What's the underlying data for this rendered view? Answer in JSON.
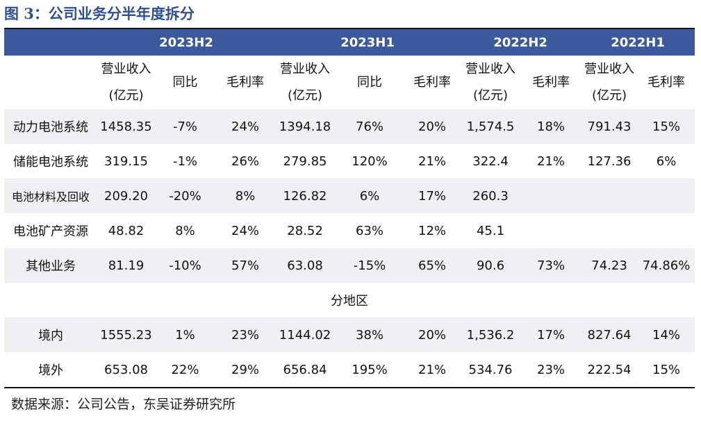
{
  "title": "图 3：公司业务分半年度拆分",
  "periods": [
    "2023H2",
    "2023H1",
    "2022H2",
    "2022H1"
  ],
  "col_headers": {
    "revenue_line1": "营业收入",
    "revenue_line2": "(亿元)",
    "yoy": "同比",
    "margin": "毛利率"
  },
  "rows": [
    {
      "label": "动力电池系统",
      "cells": [
        "1458.35",
        "-7%",
        "24%",
        "1394.18",
        "76%",
        "20%",
        "1,574.5",
        "18%",
        "791.43",
        "15%"
      ]
    },
    {
      "label": "储能电池系统",
      "cells": [
        "319.15",
        "-1%",
        "26%",
        "279.85",
        "120%",
        "21%",
        "322.4",
        "21%",
        "127.36",
        "6%"
      ]
    },
    {
      "label": "电池材料及回收",
      "cells": [
        "209.20",
        "-20%",
        "8%",
        "126.82",
        "6%",
        "17%",
        "260.3",
        "",
        "",
        ""
      ]
    },
    {
      "label": "电池矿产资源",
      "cells": [
        "48.82",
        "8%",
        "24%",
        "28.52",
        "63%",
        "12%",
        "45.1",
        "",
        "",
        ""
      ]
    },
    {
      "label": "其他业务",
      "cells": [
        "81.19",
        "-10%",
        "57%",
        "63.08",
        "-15%",
        "65%",
        "90.6",
        "73%",
        "74.23",
        "74.86%"
      ]
    }
  ],
  "region_header": "分地区",
  "region_rows": [
    {
      "label": "境内",
      "cells": [
        "1555.23",
        "1%",
        "23%",
        "1144.02",
        "38%",
        "20%",
        "1,536.2",
        "17%",
        "827.64",
        "14%"
      ]
    },
    {
      "label": "境外",
      "cells": [
        "653.08",
        "22%",
        "29%",
        "656.84",
        "195%",
        "21%",
        "534.76",
        "23%",
        "222.54",
        "15%"
      ]
    }
  ],
  "source": "数据来源：公司公告，东吴证券研究所"
}
